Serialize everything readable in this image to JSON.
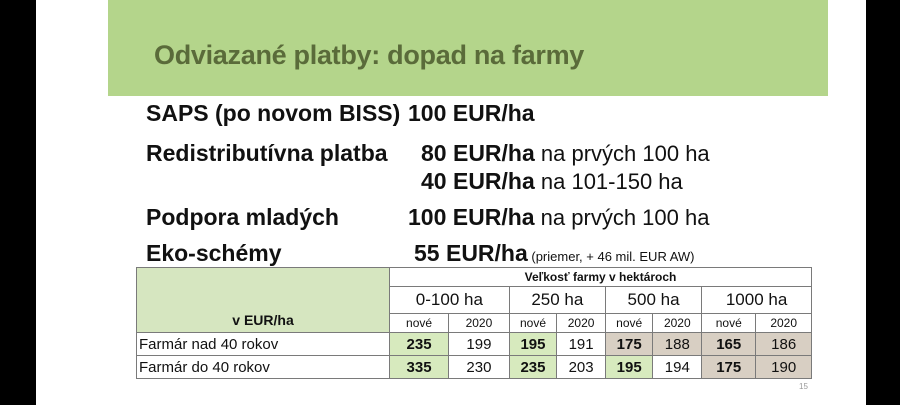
{
  "title": "Odviazané platby: dopad na farmy",
  "lines": [
    {
      "label": "SAPS (po novom BISS)",
      "value": "100 EUR/ha",
      "rest": ""
    },
    {
      "label": "Redistributívna platba",
      "value": "80 EUR/ha",
      "rest": " na prvých 100 ha"
    },
    {
      "label": "",
      "value": "40 EUR/ha",
      "rest": " na 101-150 ha"
    },
    {
      "label": "Podpora mladých",
      "value": "100 EUR/ha",
      "rest": " na prvých 100 ha"
    },
    {
      "label": "Eko-schémy",
      "value": "55 EUR/ha",
      "rest": " (priemer, + 46 mil. EUR  AW)"
    }
  ],
  "table": {
    "corner": "v EUR/ha",
    "group_header": "Veľkosť farmy v hektároch",
    "ranges": [
      "0-100 ha",
      "250 ha",
      "500 ha",
      "1000 ha"
    ],
    "sub": [
      "nové",
      "2020"
    ],
    "rows": [
      {
        "label": "Farmár nad 40 rokov",
        "values": [
          "235",
          "199",
          "195",
          "191",
          "175",
          "188",
          "165",
          "186"
        ]
      },
      {
        "label": "Farmár do 40 rokov",
        "values": [
          "335",
          "230",
          "235",
          "203",
          "195",
          "194",
          "175",
          "190"
        ]
      }
    ]
  },
  "page_number": "15",
  "colors": {
    "title_band": "#b4d58b",
    "title_text": "#5a6b3a",
    "cell_green": "#d7eabe",
    "cell_tan": "#d8cfc3"
  }
}
